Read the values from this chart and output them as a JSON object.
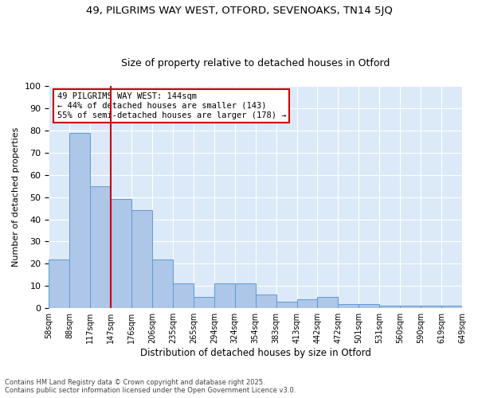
{
  "title1": "49, PILGRIMS WAY WEST, OTFORD, SEVENOAKS, TN14 5JQ",
  "title2": "Size of property relative to detached houses in Otford",
  "xlabel": "Distribution of detached houses by size in Otford",
  "ylabel": "Number of detached properties",
  "bar_values": [
    22,
    79,
    55,
    49,
    44,
    22,
    11,
    5,
    11,
    11,
    6,
    3,
    4,
    5,
    2,
    2,
    1,
    1,
    1,
    1
  ],
  "categories": [
    "58sqm",
    "88sqm",
    "117sqm",
    "147sqm",
    "176sqm",
    "206sqm",
    "235sqm",
    "265sqm",
    "294sqm",
    "324sqm",
    "354sqm",
    "383sqm",
    "413sqm",
    "442sqm",
    "472sqm",
    "501sqm",
    "531sqm",
    "560sqm",
    "590sqm",
    "619sqm",
    "649sqm"
  ],
  "bar_color": "#aec6e8",
  "bar_edge_color": "#5b9bd5",
  "vline_x": 2.5,
  "vline_color": "#cc0000",
  "annotation_text": "49 PILGRIMS WAY WEST: 144sqm\n← 44% of detached houses are smaller (143)\n55% of semi-detached houses are larger (178) →",
  "annotation_box_edgecolor": "#cc0000",
  "ylim": [
    0,
    100
  ],
  "yticks": [
    0,
    10,
    20,
    30,
    40,
    50,
    60,
    70,
    80,
    90,
    100
  ],
  "background_color": "#dce9f8",
  "footer": "Contains HM Land Registry data © Crown copyright and database right 2025.\nContains public sector information licensed under the Open Government Licence v3.0."
}
